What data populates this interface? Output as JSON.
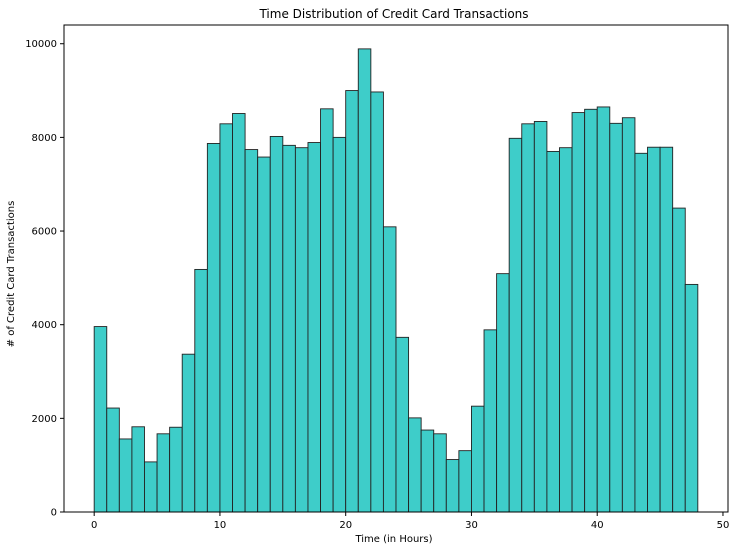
{
  "chart_data": {
    "type": "bar",
    "title": "Time Distribution of Credit Card Transactions",
    "xlabel": "Time (in Hours)",
    "ylabel": "# of Credit Card Transactions",
    "xlim": [
      -2.4,
      50.4
    ],
    "ylim": [
      0,
      10400
    ],
    "xticks": [
      0,
      10,
      20,
      30,
      40,
      50
    ],
    "yticks": [
      0,
      2000,
      4000,
      6000,
      8000,
      10000
    ],
    "grid": false,
    "bin_width": 1,
    "bin_start": 0,
    "fill_color": "#3ecdc9",
    "edge_color": "#222222",
    "values": [
      3960,
      2220,
      1560,
      1820,
      1070,
      1670,
      1810,
      3370,
      5180,
      7870,
      8290,
      8510,
      7740,
      7580,
      8020,
      7830,
      7780,
      7890,
      8610,
      8000,
      9000,
      9890,
      8970,
      6090,
      3730,
      2010,
      1750,
      1670,
      1120,
      1310,
      2260,
      3890,
      5090,
      7980,
      8290,
      8340,
      7700,
      7780,
      8530,
      8600,
      8650,
      8300,
      8420,
      7660,
      7790,
      7790,
      6490,
      4860
    ]
  }
}
